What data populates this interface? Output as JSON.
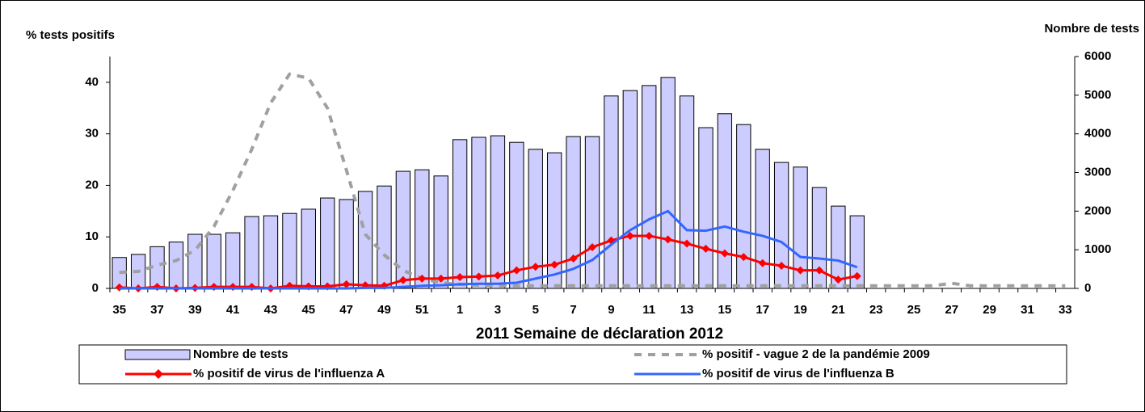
{
  "chart_data": {
    "type": "combo",
    "y_label": "% tests positifs",
    "y2_label": "Nombre de tests",
    "x_label": "2011  Semaine de déclaration   2012",
    "categories": [
      "35",
      null,
      "37",
      null,
      "39",
      null,
      "41",
      null,
      "43",
      null,
      "45",
      null,
      "47",
      null,
      "49",
      null,
      "51",
      null,
      "1",
      null,
      "3",
      null,
      "5",
      null,
      "7",
      null,
      "9",
      null,
      "11",
      null,
      "13",
      null,
      "15",
      null,
      "17",
      null,
      "19",
      null,
      "21",
      null,
      "23",
      null,
      "25",
      null,
      "27",
      null,
      "29",
      null,
      "31",
      null,
      "33"
    ],
    "ylim": [
      0,
      45
    ],
    "yticks": [
      0,
      10,
      20,
      30,
      40
    ],
    "y2lim": [
      0,
      6000
    ],
    "y2ticks": [
      0,
      1000,
      2000,
      3000,
      4000,
      5000,
      6000
    ],
    "series": [
      {
        "name": "Nombre de tests",
        "type": "bar",
        "axis": "y2",
        "color": "#ccccff",
        "values": [
          800,
          880,
          1080,
          1200,
          1400,
          1400,
          1440,
          1860,
          1880,
          1940,
          2050,
          2340,
          2300,
          2510,
          2650,
          3030,
          3070,
          2910,
          3850,
          3910,
          3950,
          3780,
          3600,
          3510,
          3930,
          3930,
          4980,
          5120,
          5250,
          5460,
          4980,
          4160,
          4520,
          4240,
          3600,
          3260,
          3140,
          2610,
          2130,
          1880,
          null,
          null,
          null,
          null,
          null,
          null,
          null,
          null,
          null,
          null,
          null
        ]
      },
      {
        "name": "% positif - vague 2 de la pandémie 2009",
        "type": "line",
        "dash": true,
        "color": "#a0a0a0",
        "values": [
          3.1,
          3.3,
          4.5,
          5.4,
          7.4,
          12,
          19,
          27,
          36,
          41.6,
          40.8,
          35,
          23,
          10.5,
          6.5,
          3.5,
          1.9,
          1.1,
          0.8,
          0.6,
          0.5,
          0.5,
          0.5,
          0.5,
          0.5,
          0.5,
          0.5,
          0.5,
          0.5,
          0.5,
          0.5,
          0.5,
          0.5,
          0.5,
          0.5,
          0.5,
          0.5,
          0.5,
          0.5,
          0.5,
          0.5,
          0.5,
          0.5,
          0.5,
          1.0,
          0.5,
          0.5,
          0.5,
          0.5,
          0.5,
          0.5
        ]
      },
      {
        "name": "% positif de virus de l'influenza A",
        "type": "line",
        "marker": "diamond",
        "color": "#ff0000",
        "values": [
          0.2,
          0,
          0.3,
          0,
          0.1,
          0.3,
          0.3,
          0.3,
          0,
          0.5,
          0.4,
          0.4,
          0.8,
          0.6,
          0.5,
          1.6,
          1.9,
          1.9,
          2.2,
          2.3,
          2.5,
          3.5,
          4.2,
          4.6,
          5.8,
          8.0,
          9.3,
          10.2,
          10.2,
          9.5,
          8.7,
          7.7,
          6.8,
          6.1,
          4.9,
          4.4,
          3.5,
          3.5,
          1.7,
          2.4,
          null,
          null,
          null,
          null,
          null,
          null,
          null,
          null,
          null,
          null,
          null
        ]
      },
      {
        "name": "% positif de virus de l'influenza B",
        "type": "line",
        "color": "#3366ff",
        "values": [
          0,
          0,
          0,
          0,
          0,
          0,
          0,
          0,
          0,
          0,
          0,
          0,
          0,
          0.1,
          0.1,
          0.3,
          0.5,
          0.6,
          0.8,
          0.9,
          0.9,
          1.1,
          1.9,
          2.7,
          3.8,
          5.5,
          8.5,
          11.3,
          13.4,
          15.0,
          11.3,
          11.2,
          12.0,
          11.0,
          10.2,
          9.0,
          6.1,
          5.8,
          5.4,
          4.1,
          null,
          null,
          null,
          null,
          null,
          null,
          null,
          null,
          null,
          null,
          null
        ]
      }
    ]
  }
}
